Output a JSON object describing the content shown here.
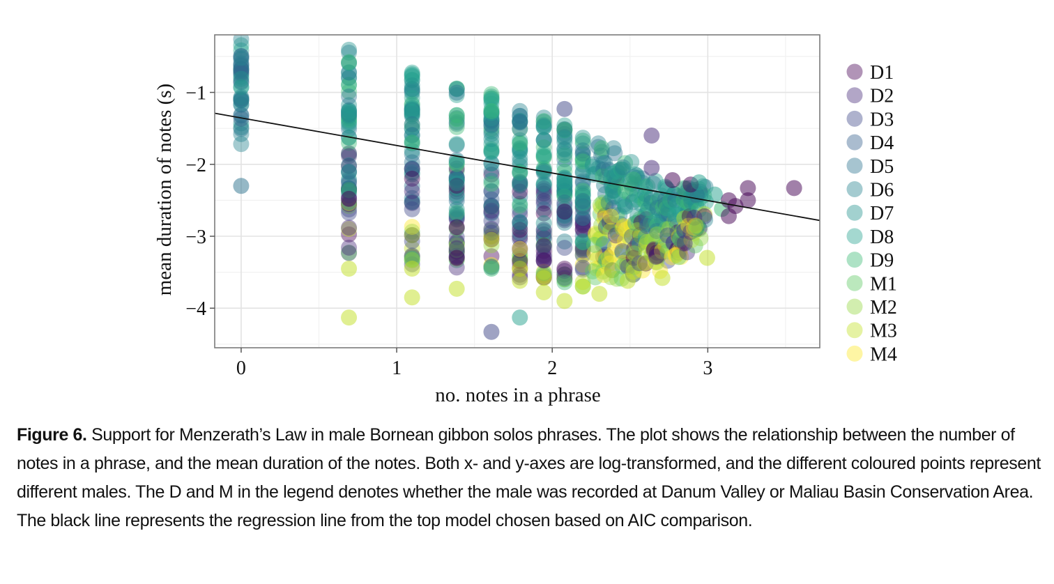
{
  "chart_data": {
    "type": "scatter",
    "title": "",
    "xlabel": "no. notes in a phrase",
    "ylabel": "mean duration of notes (s)",
    "xlim": [
      -0.17,
      3.72
    ],
    "ylim": [
      -4.55,
      -0.2
    ],
    "x_ticks": [
      0,
      1,
      2,
      3
    ],
    "x_tick_labels": [
      "0",
      "1",
      "2",
      "3"
    ],
    "y_ticks": [
      -1,
      -2,
      -3,
      -4
    ],
    "y_tick_labels": [
      "−1",
      "−2",
      "−3",
      "−4"
    ],
    "grid": true,
    "legend_position": "right",
    "series": [
      {
        "name": "D1",
        "color": "#440154"
      },
      {
        "name": "D2",
        "color": "#472c7a"
      },
      {
        "name": "D3",
        "color": "#3f4788"
      },
      {
        "name": "D4",
        "color": "#35608d"
      },
      {
        "name": "D5",
        "color": "#2c728e"
      },
      {
        "name": "D6",
        "color": "#26828e"
      },
      {
        "name": "D7",
        "color": "#21918c"
      },
      {
        "name": "D8",
        "color": "#25a18e"
      },
      {
        "name": "D9",
        "color": "#3bbb75"
      },
      {
        "name": "M1",
        "color": "#5ec962"
      },
      {
        "name": "M2",
        "color": "#93d741"
      },
      {
        "name": "M3",
        "color": "#c2df23"
      },
      {
        "name": "M4",
        "color": "#fde725"
      }
    ],
    "columns": [
      {
        "x": 0.0,
        "ymin": -1.75,
        "ymax": -0.22
      },
      {
        "x": 0.693,
        "ymin": -3.25,
        "ymax": -0.4
      },
      {
        "x": 1.099,
        "ymin": -3.4,
        "ymax": -0.7
      },
      {
        "x": 1.386,
        "ymin": -3.45,
        "ymax": -0.85
      },
      {
        "x": 1.609,
        "ymin": -3.45,
        "ymax": -1.0
      },
      {
        "x": 1.792,
        "ymin": -3.6,
        "ymax": -1.12
      },
      {
        "x": 1.946,
        "ymin": -3.6,
        "ymax": -1.3
      },
      {
        "x": 2.079,
        "ymin": -3.7,
        "ymax": -1.45
      },
      {
        "x": 2.197,
        "ymin": -3.7,
        "ymax": -1.55
      },
      {
        "x": 2.303,
        "ymin": -3.6,
        "ymax": -1.65
      },
      {
        "x": 2.398,
        "ymin": -3.6,
        "ymax": -1.75
      },
      {
        "x": 2.485,
        "ymin": -3.6,
        "ymax": -1.95
      },
      {
        "x": 2.565,
        "ymin": -3.5,
        "ymax": -2.1
      },
      {
        "x": 2.639,
        "ymin": -3.4,
        "ymax": -2.2
      },
      {
        "x": 2.708,
        "ymin": -3.5,
        "ymax": -2.3
      },
      {
        "x": 2.773,
        "ymin": -3.3,
        "ymax": -2.35
      },
      {
        "x": 2.833,
        "ymin": -3.3,
        "ymax": -2.4
      },
      {
        "x": 2.89,
        "ymin": -3.2,
        "ymax": -2.3
      },
      {
        "x": 2.944,
        "ymin": -3.1,
        "ymax": -2.3
      }
    ],
    "outlier_points": [
      {
        "x": 0.0,
        "y": -2.3,
        "series": "D5"
      },
      {
        "x": 0.693,
        "y": -3.45,
        "series": "M3"
      },
      {
        "x": 0.693,
        "y": -4.13,
        "series": "M3"
      },
      {
        "x": 1.099,
        "y": -3.45,
        "series": "M3"
      },
      {
        "x": 1.099,
        "y": -3.85,
        "series": "M3"
      },
      {
        "x": 1.386,
        "y": -3.3,
        "series": "D1"
      },
      {
        "x": 1.386,
        "y": -3.73,
        "series": "M3"
      },
      {
        "x": 1.609,
        "y": -4.33,
        "series": "D3"
      },
      {
        "x": 1.609,
        "y": -3.45,
        "series": "D9"
      },
      {
        "x": 1.792,
        "y": -4.13,
        "series": "D8"
      },
      {
        "x": 1.792,
        "y": -3.62,
        "series": "M3"
      },
      {
        "x": 1.946,
        "y": -3.78,
        "series": "M3"
      },
      {
        "x": 1.946,
        "y": -3.58,
        "series": "M3"
      },
      {
        "x": 2.079,
        "y": -3.9,
        "series": "M3"
      },
      {
        "x": 2.079,
        "y": -1.23,
        "series": "D3"
      },
      {
        "x": 2.197,
        "y": -3.7,
        "series": "M3"
      },
      {
        "x": 2.303,
        "y": -3.8,
        "series": "M3"
      },
      {
        "x": 2.485,
        "y": -3.62,
        "series": "M3"
      },
      {
        "x": 2.639,
        "y": -1.6,
        "series": "D2"
      },
      {
        "x": 2.639,
        "y": -2.05,
        "series": "D2"
      },
      {
        "x": 2.708,
        "y": -3.58,
        "series": "M3"
      },
      {
        "x": 2.773,
        "y": -2.22,
        "series": "D1"
      },
      {
        "x": 2.89,
        "y": -2.28,
        "series": "D1"
      },
      {
        "x": 2.944,
        "y": -2.25,
        "series": "D8"
      },
      {
        "x": 2.996,
        "y": -3.3,
        "series": "M3"
      },
      {
        "x": 3.045,
        "y": -2.42,
        "series": "D8"
      },
      {
        "x": 3.091,
        "y": -2.62,
        "series": "D9"
      },
      {
        "x": 3.135,
        "y": -2.5,
        "series": "D1"
      },
      {
        "x": 3.178,
        "y": -2.58,
        "series": "D1"
      },
      {
        "x": 3.135,
        "y": -2.72,
        "series": "D1"
      },
      {
        "x": 3.258,
        "y": -2.33,
        "series": "D1"
      },
      {
        "x": 3.258,
        "y": -2.5,
        "series": "D1"
      },
      {
        "x": 3.555,
        "y": -2.33,
        "series": "D1"
      }
    ],
    "regression_line": {
      "x": [
        -0.17,
        3.72
      ],
      "y": [
        -1.29,
        -2.78
      ],
      "color": "#111111"
    }
  },
  "caption": {
    "label": "Figure 6.",
    "text": "Support for Menzerath’s Law in male Bornean gibbon solos phrases. The plot shows the relationship between the number of notes in a phrase, and the mean duration of the notes. Both x- and y-axes are log-transformed, and the different coloured points represent different males. The D and M in the legend denotes whether the male was recorded at Danum Valley or Maliau Basin Conservation Area. The black line represents the regression line from the top model chosen based on AIC comparison."
  }
}
